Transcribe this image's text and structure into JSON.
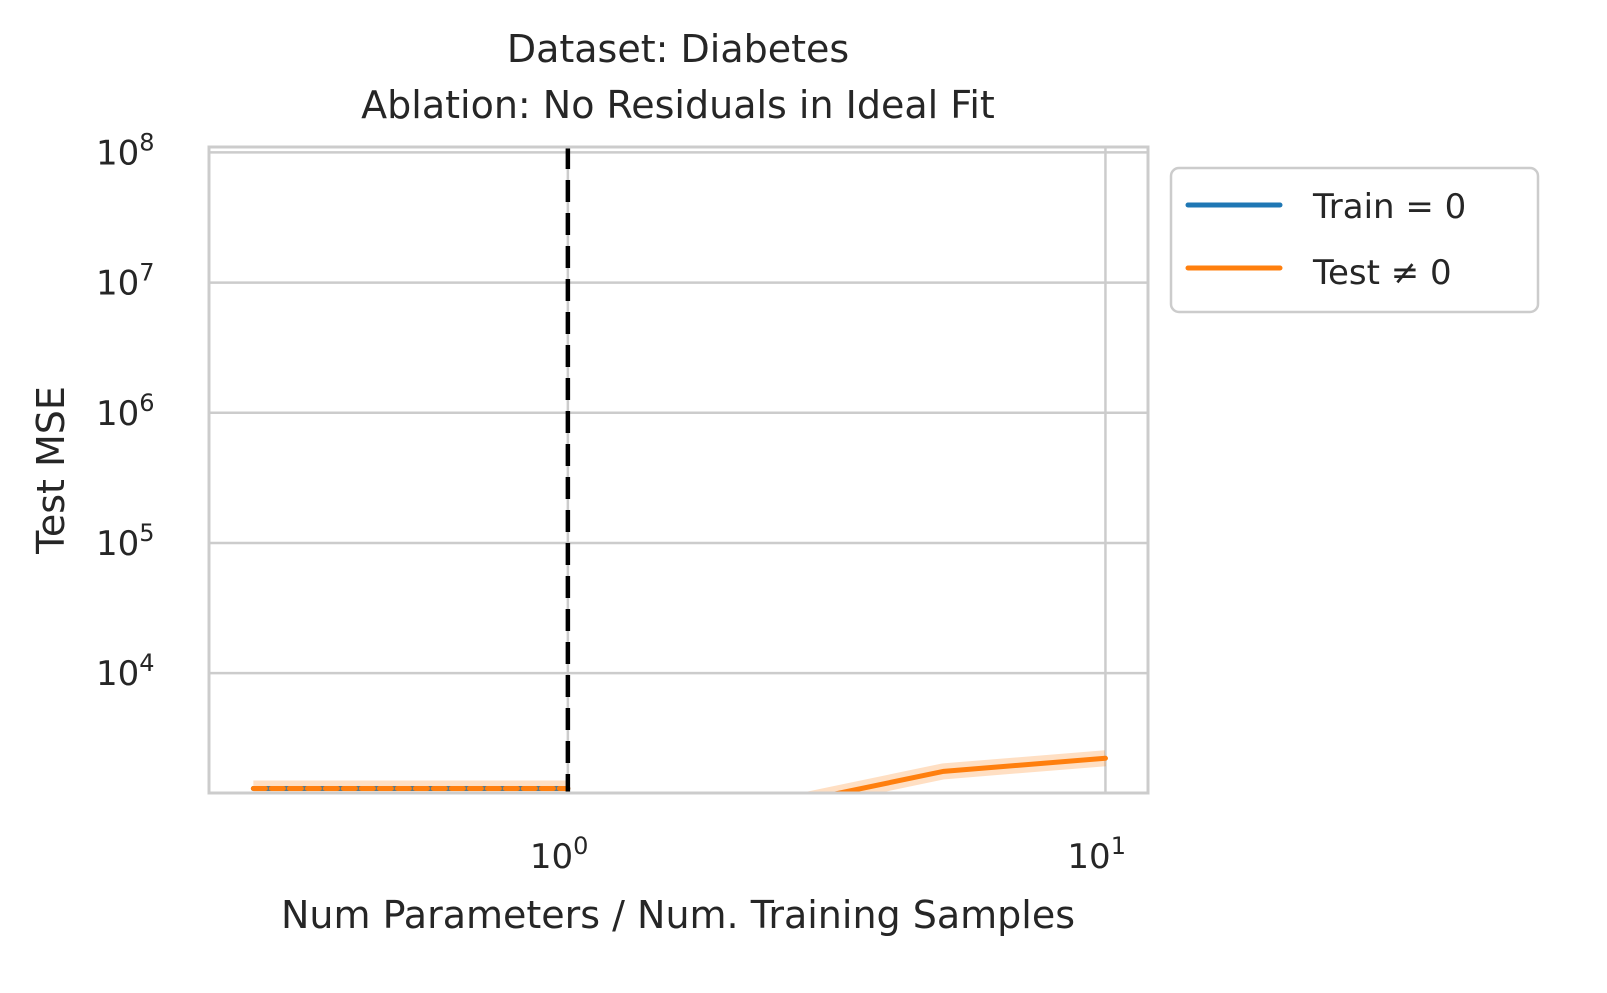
{
  "chart_data": {
    "type": "line",
    "title": "Dataset: Diabetes",
    "subtitle": "Ablation: No Residuals in Ideal Fit",
    "xlabel": "Num Parameters / Num. Training Samples",
    "ylabel": "Test MSE",
    "xscale": "log",
    "yscale": "log",
    "xlim": [
      0.215,
      12
    ],
    "ylim": [
      1200,
      110000000
    ],
    "grid": true,
    "x_ticks": [
      {
        "value": 1,
        "base": "10",
        "exp": "0"
      },
      {
        "value": 10,
        "base": "10",
        "exp": "1"
      }
    ],
    "y_ticks": [
      {
        "value": 10000,
        "base": "10",
        "exp": "4"
      },
      {
        "value": 100000,
        "base": "10",
        "exp": "5"
      },
      {
        "value": 1000000,
        "base": "10",
        "exp": "6"
      },
      {
        "value": 10000000,
        "base": "10",
        "exp": "7"
      },
      {
        "value": 100000000,
        "base": "10",
        "exp": "8"
      }
    ],
    "vline": {
      "x": 1,
      "style": "dashed",
      "color": "#000000"
    },
    "legend_position": "outside-top-right",
    "series": [
      {
        "name": "Train = 0",
        "color": "#1f77b4",
        "x": [
          0.26,
          0.4,
          0.6,
          0.8,
          1.0
        ],
        "y": [
          1300,
          1300,
          1300,
          1300,
          1300
        ]
      },
      {
        "name": "Test ≠ 0",
        "color": "#ff7f0e",
        "segments": [
          {
            "x": [
              0.26,
              0.4,
              0.6,
              0.8,
              1.0
            ],
            "y": [
              1300,
              1300,
              1300,
              1300,
              1300
            ]
          },
          {
            "x": [
              2,
              5,
              10
            ],
            "y": [
              800,
              1760,
              2220
            ]
          }
        ]
      }
    ]
  }
}
